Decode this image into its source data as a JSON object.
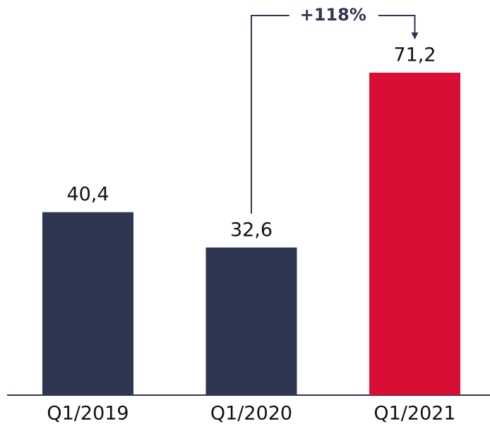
{
  "chart_data": {
    "type": "bar",
    "categories": [
      "Q1/2019",
      "Q1/2020",
      "Q1/2021"
    ],
    "values": [
      40.4,
      32.6,
      71.2
    ],
    "value_labels": [
      "40,4",
      "32,6",
      "71,2"
    ],
    "colors": [
      "#2f3750",
      "#2f3750",
      "#d80e35"
    ],
    "annotation": "+118%"
  }
}
